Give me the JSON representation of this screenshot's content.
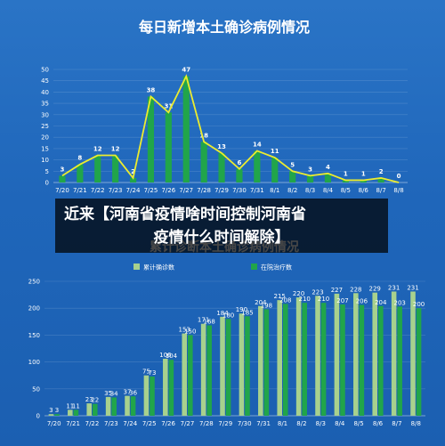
{
  "overlay": {
    "line1": "近来【河南省疫情啥时间控制河南省",
    "line2": "疫情什么时间解除】"
  },
  "colors": {
    "bg": "#1f66ba",
    "green": "#21a54a",
    "light_green": "#a8d18d",
    "line": "#ecec2e"
  },
  "chart_data": [
    {
      "type": "bar+line",
      "title": "每日新增本土确诊病例情况",
      "categories": [
        "7/20",
        "7/21",
        "7/22",
        "7/23",
        "7/24",
        "7/25",
        "7/26",
        "7/27",
        "7/28",
        "7/29",
        "7/30",
        "7/31",
        "8/1",
        "8/2",
        "8/3",
        "8/4",
        "8/5",
        "8/6",
        "8/7",
        "8/8"
      ],
      "values": [
        3,
        8,
        12,
        12,
        2,
        38,
        31,
        47,
        18,
        13,
        6,
        14,
        11,
        5,
        3,
        4,
        1,
        1,
        2,
        0
      ],
      "ylim": [
        0,
        50
      ],
      "yticks": [
        0,
        5,
        10,
        15,
        20,
        25,
        30,
        35,
        40,
        45,
        50
      ],
      "grid": true
    },
    {
      "type": "bar",
      "title": "累计诊断本土确诊病例情况",
      "categories": [
        "7/20",
        "7/21",
        "7/22",
        "7/23",
        "7/24",
        "7/25",
        "7/26",
        "7/27",
        "7/28",
        "7/29",
        "7/30",
        "7/31",
        "8/1",
        "8/2",
        "8/3",
        "8/4",
        "8/5",
        "8/6",
        "8/7",
        "8/8"
      ],
      "series": [
        {
          "name": "累计确诊数",
          "values": [
            3,
            11,
            23,
            35,
            37,
            75,
            106,
            153,
            171,
            184,
            190,
            204,
            215,
            220,
            223,
            227,
            228,
            229,
            231,
            231
          ]
        },
        {
          "name": "在院治疗数",
          "values": [
            3,
            11,
            22,
            34,
            36,
            73,
            104,
            150,
            168,
            180,
            185,
            198,
            208,
            210,
            210,
            207,
            206,
            204,
            203,
            200
          ]
        }
      ],
      "ylim": [
        0,
        250
      ],
      "yticks": [
        0,
        50,
        100,
        150,
        200,
        250
      ],
      "legend": "top",
      "grid": true
    }
  ]
}
